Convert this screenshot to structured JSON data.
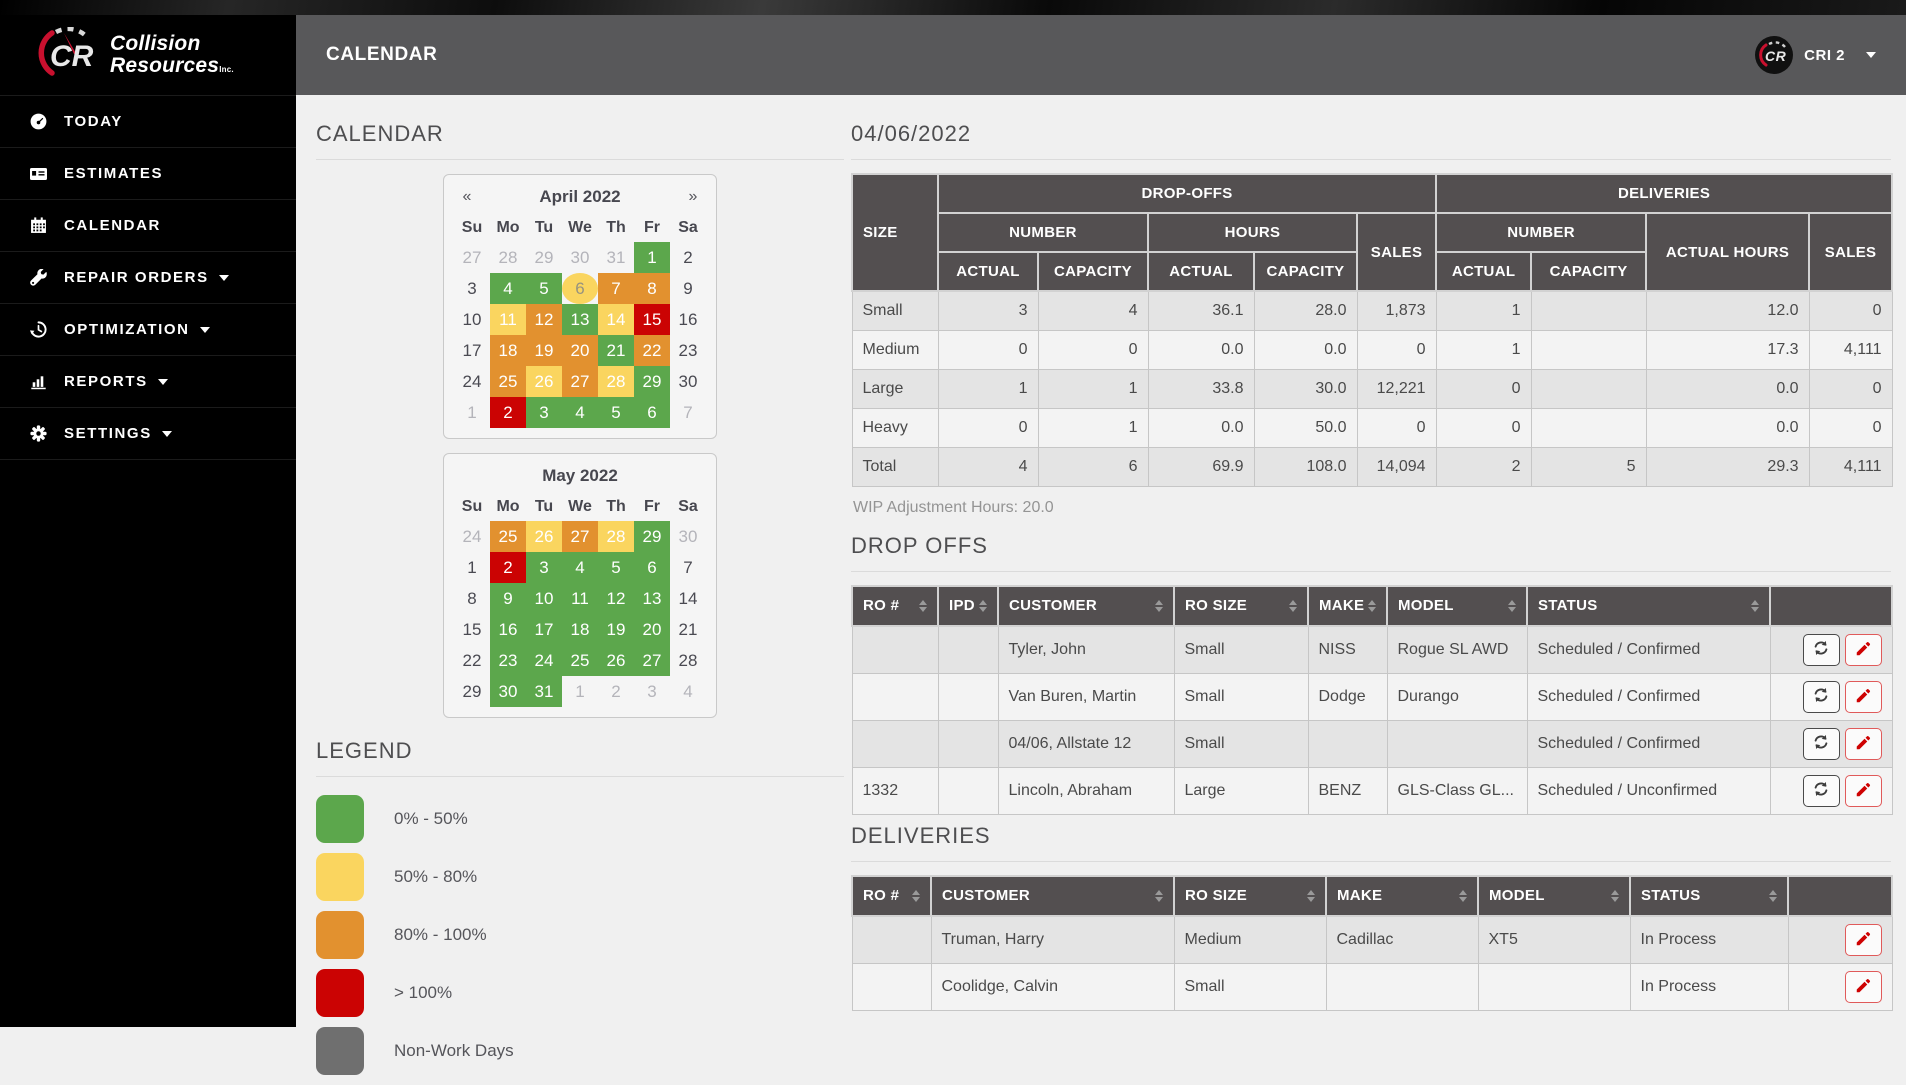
{
  "colors": {
    "green": "#5CA74C",
    "yellow": "#FAD55F",
    "orange": "#E2912F",
    "red": "#CB0303",
    "gray": "#6F6F6F",
    "brand_red": "#C8102E",
    "edit_red": "#CE0202"
  },
  "brand": {
    "initials": "CR",
    "line1": "Collision",
    "line2": "Resources",
    "suffix": "Inc."
  },
  "topbar": {
    "title": "CALENDAR",
    "user_label": "CRI 2",
    "avatar_initials": "CR"
  },
  "sidebar": {
    "items": [
      {
        "label": "TODAY",
        "icon": "tachometer-icon",
        "caret": false
      },
      {
        "label": "ESTIMATES",
        "icon": "id-card-icon",
        "caret": false
      },
      {
        "label": "CALENDAR",
        "icon": "calendar-icon",
        "caret": false
      },
      {
        "label": "REPAIR ORDERS",
        "icon": "wrench-icon",
        "caret": true
      },
      {
        "label": "OPTIMIZATION",
        "icon": "history-icon",
        "caret": true
      },
      {
        "label": "REPORTS",
        "icon": "bar-chart-icon",
        "caret": true
      },
      {
        "label": "SETTINGS",
        "icon": "gear-icon",
        "caret": true
      }
    ]
  },
  "left": {
    "heading": "CALENDAR",
    "months": [
      {
        "title": "April 2022",
        "prev": "«",
        "next": "»",
        "weekdays": [
          "Su",
          "Mo",
          "Tu",
          "We",
          "Th",
          "Fr",
          "Sa"
        ],
        "weeks": [
          [
            {
              "d": "27",
              "c": "muted"
            },
            {
              "d": "28",
              "c": "muted"
            },
            {
              "d": "29",
              "c": "muted"
            },
            {
              "d": "30",
              "c": "muted"
            },
            {
              "d": "31",
              "c": "muted"
            },
            {
              "d": "1",
              "c": "green"
            },
            {
              "d": "2",
              "c": "plain"
            }
          ],
          [
            {
              "d": "3",
              "c": "plain"
            },
            {
              "d": "4",
              "c": "green"
            },
            {
              "d": "5",
              "c": "green"
            },
            {
              "d": "6",
              "c": "selected"
            },
            {
              "d": "7",
              "c": "orange"
            },
            {
              "d": "8",
              "c": "orange"
            },
            {
              "d": "9",
              "c": "plain"
            }
          ],
          [
            {
              "d": "10",
              "c": "plain"
            },
            {
              "d": "11",
              "c": "yellow"
            },
            {
              "d": "12",
              "c": "orange"
            },
            {
              "d": "13",
              "c": "green"
            },
            {
              "d": "14",
              "c": "yellow"
            },
            {
              "d": "15",
              "c": "red"
            },
            {
              "d": "16",
              "c": "plain"
            }
          ],
          [
            {
              "d": "17",
              "c": "plain"
            },
            {
              "d": "18",
              "c": "orange"
            },
            {
              "d": "19",
              "c": "orange"
            },
            {
              "d": "20",
              "c": "orange"
            },
            {
              "d": "21",
              "c": "green"
            },
            {
              "d": "22",
              "c": "orange"
            },
            {
              "d": "23",
              "c": "plain"
            }
          ],
          [
            {
              "d": "24",
              "c": "plain"
            },
            {
              "d": "25",
              "c": "orange"
            },
            {
              "d": "26",
              "c": "yellow"
            },
            {
              "d": "27",
              "c": "orange"
            },
            {
              "d": "28",
              "c": "yellow"
            },
            {
              "d": "29",
              "c": "green"
            },
            {
              "d": "30",
              "c": "plain"
            }
          ],
          [
            {
              "d": "1",
              "c": "muted"
            },
            {
              "d": "2",
              "c": "red"
            },
            {
              "d": "3",
              "c": "green"
            },
            {
              "d": "4",
              "c": "green"
            },
            {
              "d": "5",
              "c": "green"
            },
            {
              "d": "6",
              "c": "green"
            },
            {
              "d": "7",
              "c": "muted"
            }
          ]
        ]
      },
      {
        "title": "May 2022",
        "prev": "",
        "next": "",
        "weekdays": [
          "Su",
          "Mo",
          "Tu",
          "We",
          "Th",
          "Fr",
          "Sa"
        ],
        "weeks": [
          [
            {
              "d": "24",
              "c": "muted"
            },
            {
              "d": "25",
              "c": "orange"
            },
            {
              "d": "26",
              "c": "yellow"
            },
            {
              "d": "27",
              "c": "orange"
            },
            {
              "d": "28",
              "c": "yellow"
            },
            {
              "d": "29",
              "c": "green"
            },
            {
              "d": "30",
              "c": "muted"
            }
          ],
          [
            {
              "d": "1",
              "c": "plain"
            },
            {
              "d": "2",
              "c": "red"
            },
            {
              "d": "3",
              "c": "green"
            },
            {
              "d": "4",
              "c": "green"
            },
            {
              "d": "5",
              "c": "green"
            },
            {
              "d": "6",
              "c": "green"
            },
            {
              "d": "7",
              "c": "plain"
            }
          ],
          [
            {
              "d": "8",
              "c": "plain"
            },
            {
              "d": "9",
              "c": "green"
            },
            {
              "d": "10",
              "c": "green"
            },
            {
              "d": "11",
              "c": "green"
            },
            {
              "d": "12",
              "c": "green"
            },
            {
              "d": "13",
              "c": "green"
            },
            {
              "d": "14",
              "c": "plain"
            }
          ],
          [
            {
              "d": "15",
              "c": "plain"
            },
            {
              "d": "16",
              "c": "green"
            },
            {
              "d": "17",
              "c": "green"
            },
            {
              "d": "18",
              "c": "green"
            },
            {
              "d": "19",
              "c": "green"
            },
            {
              "d": "20",
              "c": "green"
            },
            {
              "d": "21",
              "c": "plain"
            }
          ],
          [
            {
              "d": "22",
              "c": "plain"
            },
            {
              "d": "23",
              "c": "green"
            },
            {
              "d": "24",
              "c": "green"
            },
            {
              "d": "25",
              "c": "green"
            },
            {
              "d": "26",
              "c": "green"
            },
            {
              "d": "27",
              "c": "green"
            },
            {
              "d": "28",
              "c": "plain"
            }
          ],
          [
            {
              "d": "29",
              "c": "plain"
            },
            {
              "d": "30",
              "c": "green"
            },
            {
              "d": "31",
              "c": "green"
            },
            {
              "d": "1",
              "c": "muted"
            },
            {
              "d": "2",
              "c": "muted"
            },
            {
              "d": "3",
              "c": "muted"
            },
            {
              "d": "4",
              "c": "muted"
            }
          ]
        ]
      }
    ],
    "legend": {
      "heading": "LEGEND",
      "items": [
        {
          "label": "0% - 50%",
          "color": "#5CA74C"
        },
        {
          "label": "50% - 80%",
          "color": "#FAD55F"
        },
        {
          "label": "80% - 100%",
          "color": "#E2912F"
        },
        {
          "label": "> 100%",
          "color": "#CB0303"
        },
        {
          "label": "Non-Work Days",
          "color": "#6F6F6F"
        }
      ]
    }
  },
  "right": {
    "date_heading": "04/06/2022",
    "summary": {
      "headers": {
        "size": "SIZE",
        "dropoffs": "DROP-OFFS",
        "deliveries": "DELIVERIES",
        "number": "NUMBER",
        "hours": "HOURS",
        "sales": "SALES",
        "actual": "ACTUAL",
        "capacity": "CAPACITY",
        "actual_hours": "ACTUAL HOURS"
      },
      "rows": [
        {
          "size": "Small",
          "cells": [
            "3",
            "4",
            "36.1",
            "28.0",
            "1,873",
            "1",
            "",
            "12.0",
            "0"
          ]
        },
        {
          "size": "Medium",
          "cells": [
            "0",
            "0",
            "0.0",
            "0.0",
            "0",
            "1",
            "",
            "17.3",
            "4,111"
          ]
        },
        {
          "size": "Large",
          "cells": [
            "1",
            "1",
            "33.8",
            "30.0",
            "12,221",
            "0",
            "",
            "0.0",
            "0"
          ]
        },
        {
          "size": "Heavy",
          "cells": [
            "0",
            "1",
            "0.0",
            "50.0",
            "0",
            "0",
            "",
            "0.0",
            "0"
          ]
        },
        {
          "size": "Total",
          "cells": [
            "4",
            "6",
            "69.9",
            "108.0",
            "14,094",
            "2",
            "5",
            "29.3",
            "4,111"
          ]
        }
      ],
      "wip": "WIP Adjustment Hours: 20.0"
    },
    "dropoffs": {
      "heading": "DROP OFFS",
      "columns": [
        {
          "label": "RO #",
          "sortable": true
        },
        {
          "label": "IPD",
          "sortable": true
        },
        {
          "label": "CUSTOMER",
          "sortable": true
        },
        {
          "label": "RO SIZE",
          "sortable": true
        },
        {
          "label": "MAKE",
          "sortable": true
        },
        {
          "label": "MODEL",
          "sortable": true
        },
        {
          "label": "STATUS",
          "sortable": true
        },
        {
          "label": "",
          "sortable": false
        }
      ],
      "rows": [
        {
          "cells": [
            "",
            "",
            "Tyler, John",
            "Small",
            "NISS",
            "Rogue SL AWD",
            "Scheduled / Confirmed"
          ],
          "actions": [
            "refresh",
            "edit"
          ]
        },
        {
          "cells": [
            "",
            "",
            "Van Buren, Martin",
            "Small",
            "Dodge",
            "Durango",
            "Scheduled / Confirmed"
          ],
          "actions": [
            "refresh",
            "edit"
          ]
        },
        {
          "cells": [
            "",
            "",
            "04/06, Allstate 12",
            "Small",
            "",
            "",
            "Scheduled / Confirmed"
          ],
          "actions": [
            "refresh",
            "edit"
          ]
        },
        {
          "cells": [
            "1332",
            "",
            "Lincoln, Abraham",
            "Large",
            "BENZ",
            "GLS-Class GL...",
            "Scheduled / Unconfirmed"
          ],
          "actions": [
            "refresh",
            "edit"
          ]
        }
      ]
    },
    "deliveries": {
      "heading": "DELIVERIES",
      "columns": [
        {
          "label": "RO #",
          "sortable": true
        },
        {
          "label": "CUSTOMER",
          "sortable": true
        },
        {
          "label": "RO SIZE",
          "sortable": true
        },
        {
          "label": "MAKE",
          "sortable": true
        },
        {
          "label": "MODEL",
          "sortable": true
        },
        {
          "label": "STATUS",
          "sortable": true
        },
        {
          "label": "",
          "sortable": false
        }
      ],
      "rows": [
        {
          "cells": [
            "",
            "Truman, Harry",
            "Medium",
            "Cadillac",
            "XT5",
            "In Process"
          ],
          "actions": [
            "edit"
          ]
        },
        {
          "cells": [
            "",
            "Coolidge, Calvin",
            "Small",
            "",
            "",
            "In Process"
          ],
          "actions": [
            "edit"
          ]
        }
      ]
    }
  }
}
